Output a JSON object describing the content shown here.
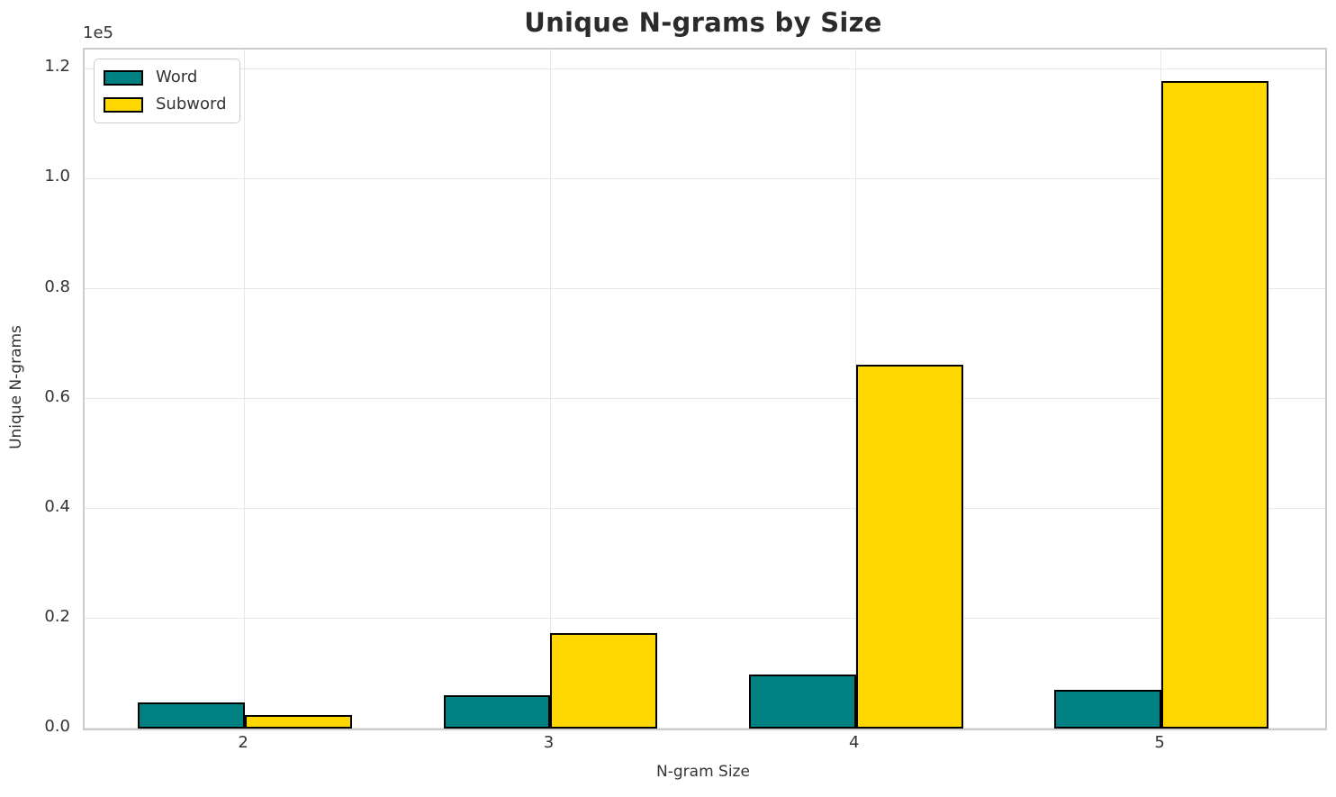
{
  "chart_data": {
    "type": "bar",
    "title": "Unique N-grams by Size",
    "xlabel": "N-gram Size",
    "ylabel": "Unique N-grams",
    "offset_text": "1e5",
    "categories": [
      "2",
      "3",
      "4",
      "5"
    ],
    "x_positions": [
      2,
      3,
      4,
      5
    ],
    "series": [
      {
        "name": "Word",
        "color": "#008080",
        "values": [
          4700,
          6000,
          9800,
          7100
        ]
      },
      {
        "name": "Subword",
        "color": "#FFD700",
        "values": [
          2400,
          17300,
          66100,
          117700
        ]
      }
    ],
    "bar_width": 0.35,
    "bar_edge_color": "#000000",
    "xlim": [
      1.475,
      5.536
    ],
    "ylim": [
      0,
      123500
    ],
    "yticks": [
      0,
      20000,
      40000,
      60000,
      80000,
      100000,
      120000
    ],
    "ytick_labels": [
      "0.0",
      "0.2",
      "0.4",
      "0.6",
      "0.8",
      "1.0",
      "1.2"
    ],
    "grid": true,
    "legend_position": "upper left",
    "background_color": "#ffffff",
    "grid_color": "#e7e7e7",
    "spine_color": "#cccccc",
    "text_color": "#333333",
    "title_color": "#2b2b2b"
  }
}
